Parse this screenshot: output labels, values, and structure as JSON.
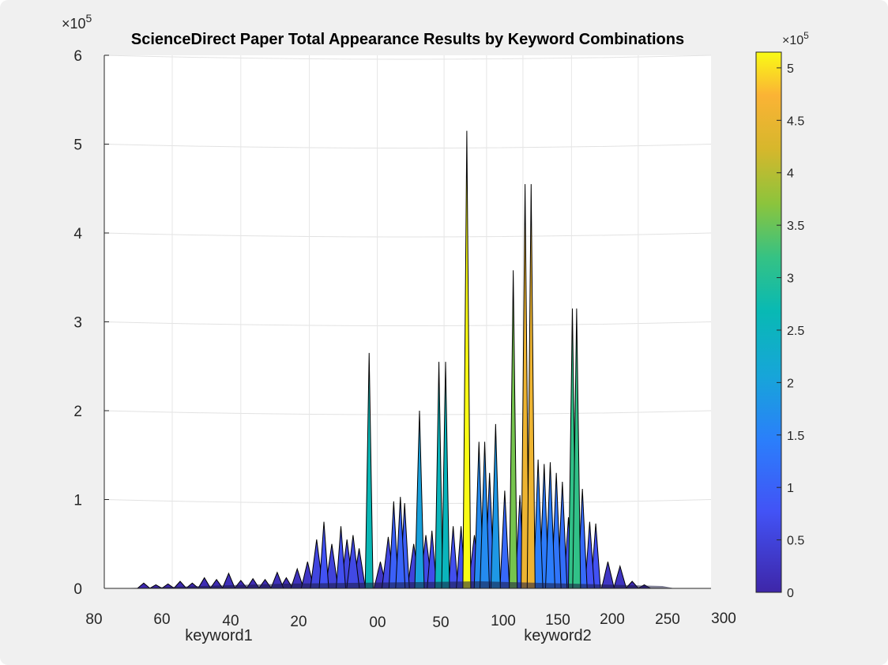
{
  "chart_data": {
    "type": "surface-3d",
    "title": "ScienceDirect Paper Total Appearance Results by Keyword Combinations",
    "xlabel": "keyword1",
    "ylabel": "keyword2",
    "z_exponent_label": "×10",
    "z_exponent": "5",
    "zlim": [
      0,
      600000
    ],
    "z_ticks": [
      "0",
      "1",
      "2",
      "3",
      "4",
      "5",
      "6"
    ],
    "keyword1_ticks": [
      "80",
      "60",
      "40",
      "20",
      "00"
    ],
    "keyword2_ticks": [
      "50",
      "100",
      "150",
      "200",
      "250",
      "300"
    ],
    "colorbar": {
      "exponent_label": "×10",
      "exponent": "5",
      "range": [
        0,
        515000
      ],
      "ticks": [
        "0",
        "0.5",
        "1",
        "1.5",
        "2",
        "2.5",
        "3",
        "3.5",
        "4",
        "4.5",
        "5"
      ],
      "tick_values": [
        0,
        50000,
        100000,
        150000,
        200000,
        250000,
        300000,
        350000,
        400000,
        450000,
        500000
      ],
      "colormap": "parula"
    },
    "grid": true,
    "peaks": [
      {
        "pos": 0.065,
        "value": 6000
      },
      {
        "pos": 0.085,
        "value": 4000
      },
      {
        "pos": 0.105,
        "value": 5000
      },
      {
        "pos": 0.125,
        "value": 8000
      },
      {
        "pos": 0.145,
        "value": 6000
      },
      {
        "pos": 0.165,
        "value": 12000
      },
      {
        "pos": 0.185,
        "value": 10000
      },
      {
        "pos": 0.205,
        "value": 17000
      },
      {
        "pos": 0.225,
        "value": 9000
      },
      {
        "pos": 0.245,
        "value": 11000
      },
      {
        "pos": 0.265,
        "value": 10000
      },
      {
        "pos": 0.285,
        "value": 18000
      },
      {
        "pos": 0.3,
        "value": 12000
      },
      {
        "pos": 0.318,
        "value": 22000
      },
      {
        "pos": 0.335,
        "value": 30000
      },
      {
        "pos": 0.35,
        "value": 55000
      },
      {
        "pos": 0.362,
        "value": 75000
      },
      {
        "pos": 0.375,
        "value": 50000
      },
      {
        "pos": 0.39,
        "value": 70000
      },
      {
        "pos": 0.4,
        "value": 55000
      },
      {
        "pos": 0.41,
        "value": 60000
      },
      {
        "pos": 0.42,
        "value": 45000
      },
      {
        "pos": 0.4365,
        "value": 265000
      },
      {
        "pos": 0.455,
        "value": 30000
      },
      {
        "pos": 0.468,
        "value": 58000
      },
      {
        "pos": 0.477,
        "value": 98000
      },
      {
        "pos": 0.488,
        "value": 103000
      },
      {
        "pos": 0.495,
        "value": 96000
      },
      {
        "pos": 0.51,
        "value": 50000
      },
      {
        "pos": 0.5195,
        "value": 200000
      },
      {
        "pos": 0.53,
        "value": 60000
      },
      {
        "pos": 0.54,
        "value": 65000
      },
      {
        "pos": 0.5515,
        "value": 255000
      },
      {
        "pos": 0.5625,
        "value": 255000
      },
      {
        "pos": 0.575,
        "value": 70000
      },
      {
        "pos": 0.588,
        "value": 70000
      },
      {
        "pos": 0.5975,
        "value": 515000
      },
      {
        "pos": 0.61,
        "value": 60000
      },
      {
        "pos": 0.6175,
        "value": 165000
      },
      {
        "pos": 0.627,
        "value": 165000
      },
      {
        "pos": 0.635,
        "value": 130000
      },
      {
        "pos": 0.645,
        "value": 185000
      },
      {
        "pos": 0.66,
        "value": 110000
      },
      {
        "pos": 0.674,
        "value": 358000
      },
      {
        "pos": 0.685,
        "value": 105000
      },
      {
        "pos": 0.6935,
        "value": 455000
      },
      {
        "pos": 0.7035,
        "value": 455000
      },
      {
        "pos": 0.715,
        "value": 145000
      },
      {
        "pos": 0.725,
        "value": 140000
      },
      {
        "pos": 0.735,
        "value": 142000
      },
      {
        "pos": 0.745,
        "value": 130000
      },
      {
        "pos": 0.755,
        "value": 120000
      },
      {
        "pos": 0.765,
        "value": 80000
      },
      {
        "pos": 0.7715,
        "value": 315000
      },
      {
        "pos": 0.7785,
        "value": 315000
      },
      {
        "pos": 0.788,
        "value": 112000
      },
      {
        "pos": 0.8,
        "value": 75000
      },
      {
        "pos": 0.81,
        "value": 73000
      },
      {
        "pos": 0.83,
        "value": 30000
      },
      {
        "pos": 0.85,
        "value": 25000
      },
      {
        "pos": 0.87,
        "value": 8000
      },
      {
        "pos": 0.89,
        "value": 4000
      }
    ]
  }
}
